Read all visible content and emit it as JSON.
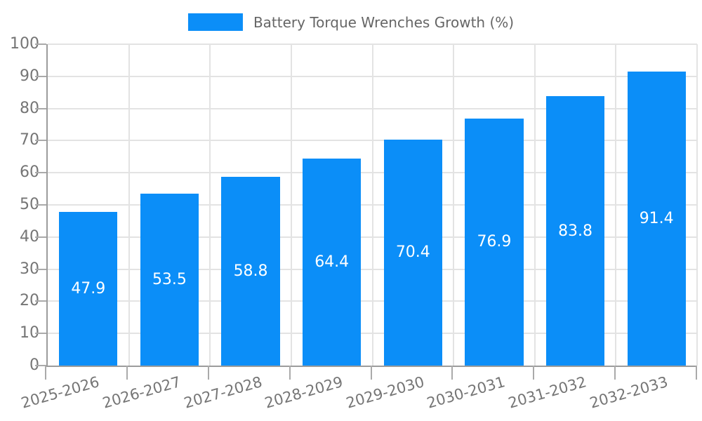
{
  "legend": {
    "label": "Battery Torque Wrenches Growth (%)"
  },
  "chart_data": {
    "type": "bar",
    "title": "Battery Torque Wrenches Growth (%)",
    "categories": [
      "2025-2026",
      "2026-2027",
      "2027-2028",
      "2028-2029",
      "2029-2030",
      "2030-2031",
      "2031-2032",
      "2032-2033"
    ],
    "series": [
      {
        "name": "Battery Torque Wrenches Growth (%)",
        "values": [
          47.9,
          53.5,
          58.8,
          64.4,
          70.4,
          76.9,
          83.8,
          91.4
        ]
      }
    ],
    "xlabel": "",
    "ylabel": "",
    "ylim": [
      0,
      100
    ],
    "ytick_step": 10,
    "yticks": [
      0,
      10,
      20,
      30,
      40,
      50,
      60,
      70,
      80,
      90,
      100
    ],
    "grid": true,
    "legend_position": "top-center",
    "value_labels_inside_bars": true,
    "value_label_decimals": 1,
    "x_label_rotation_deg": -16,
    "colors": {
      "bar": "#0b8ef8",
      "grid": "#e3e3e3",
      "axis": "#9c9c9c",
      "tick": "#aaaaaa",
      "tick_text": "#757575",
      "legend_text": "#666666",
      "value_label_text": "#ffffff",
      "background": "#ffffff"
    }
  }
}
